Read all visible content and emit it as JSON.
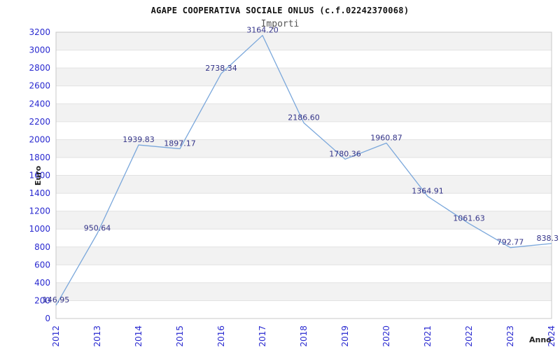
{
  "chart_data": {
    "type": "line",
    "title": "AGAPE COOPERATIVA SOCIALE ONLUS (c.f.02242370068)",
    "subtitle": "Importi",
    "xlabel": "Anno",
    "ylabel": "Euro",
    "categories": [
      "2012",
      "2013",
      "2014",
      "2015",
      "2016",
      "2017",
      "2018",
      "2019",
      "2020",
      "2021",
      "2022",
      "2023",
      "2024"
    ],
    "values": [
      146.95,
      950.64,
      1939.83,
      1897.17,
      2738.34,
      3164.2,
      2186.6,
      1780.36,
      1960.87,
      1364.91,
      1061.63,
      792.77,
      838.3
    ],
    "point_labels": [
      "146.95",
      "950.64",
      "1939.83",
      "1897.17",
      "2738.34",
      "3164.20",
      "2186.60",
      "1780.36",
      "1960.87",
      "1364.91",
      "1061.63",
      "792.77",
      "838.3"
    ],
    "ylim": [
      0,
      3200
    ],
    "ytick_step": 200,
    "grid": "alternating-horizontal-bands",
    "legend_position": "none",
    "colors": {
      "line": "#7aa7db",
      "tick_label": "#2a2ad0",
      "data_label": "#333388",
      "band_gray": "#f2f2f2",
      "band_white": "#ffffff",
      "gridline": "#e2e2e2",
      "plot_border": "#c8c8c8",
      "title": "#111111",
      "subtitle": "#555555",
      "axis_title": "#222222",
      "background": "#ffffff"
    }
  }
}
